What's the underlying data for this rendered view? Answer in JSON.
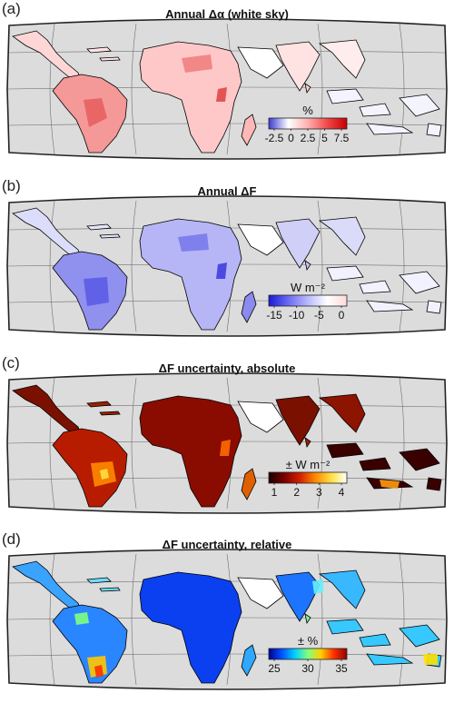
{
  "panels": [
    {
      "letter": "(a)",
      "title": "Annual Δα (white sky)",
      "unit": "%",
      "ticks": [
        "-2.5",
        "0",
        "2.5",
        "5",
        "7.5"
      ],
      "colorscale": [
        "#3b3bd1",
        "#ffffff",
        "#ffb0b0",
        "#f04848",
        "#c80000"
      ]
    },
    {
      "letter": "(b)",
      "title": "Annual ΔF",
      "unit": "W m⁻²",
      "ticks": [
        "-15",
        "-10",
        "-5",
        "0"
      ],
      "colorscale": [
        "#1a1ad6",
        "#6b6bf0",
        "#b9b9fb",
        "#ffffff",
        "#ffd8d8"
      ]
    },
    {
      "letter": "(c)",
      "title": "ΔF uncertainty, absolute",
      "unit": "± W m⁻²",
      "ticks": [
        "1",
        "2",
        "3",
        "4"
      ],
      "colorscale": [
        "#1a0000",
        "#7a0000",
        "#d42000",
        "#ff8a00",
        "#ffe040",
        "#ffffff"
      ]
    },
    {
      "letter": "(d)",
      "title": "ΔF uncertainty, relative",
      "unit": "± %",
      "ticks": [
        "25",
        "30",
        "35"
      ],
      "colorscale": [
        "#00008f",
        "#0050ff",
        "#00d0ff",
        "#7fff7f",
        "#ffd000",
        "#ff3000",
        "#900000"
      ]
    }
  ],
  "colors": {
    "ocean": "#dcdcdc",
    "land": "#ffffff",
    "coast": "#000000",
    "grid": "#6e6e6e"
  }
}
